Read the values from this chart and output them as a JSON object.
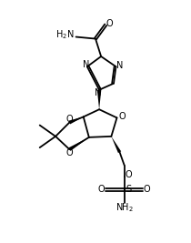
{
  "background": "#ffffff",
  "line_color": "#000000",
  "line_width": 1.3,
  "fig_width": 2.1,
  "fig_height": 2.67,
  "dpi": 100,
  "xlim": [
    0,
    10
  ],
  "ylim": [
    0,
    13
  ]
}
